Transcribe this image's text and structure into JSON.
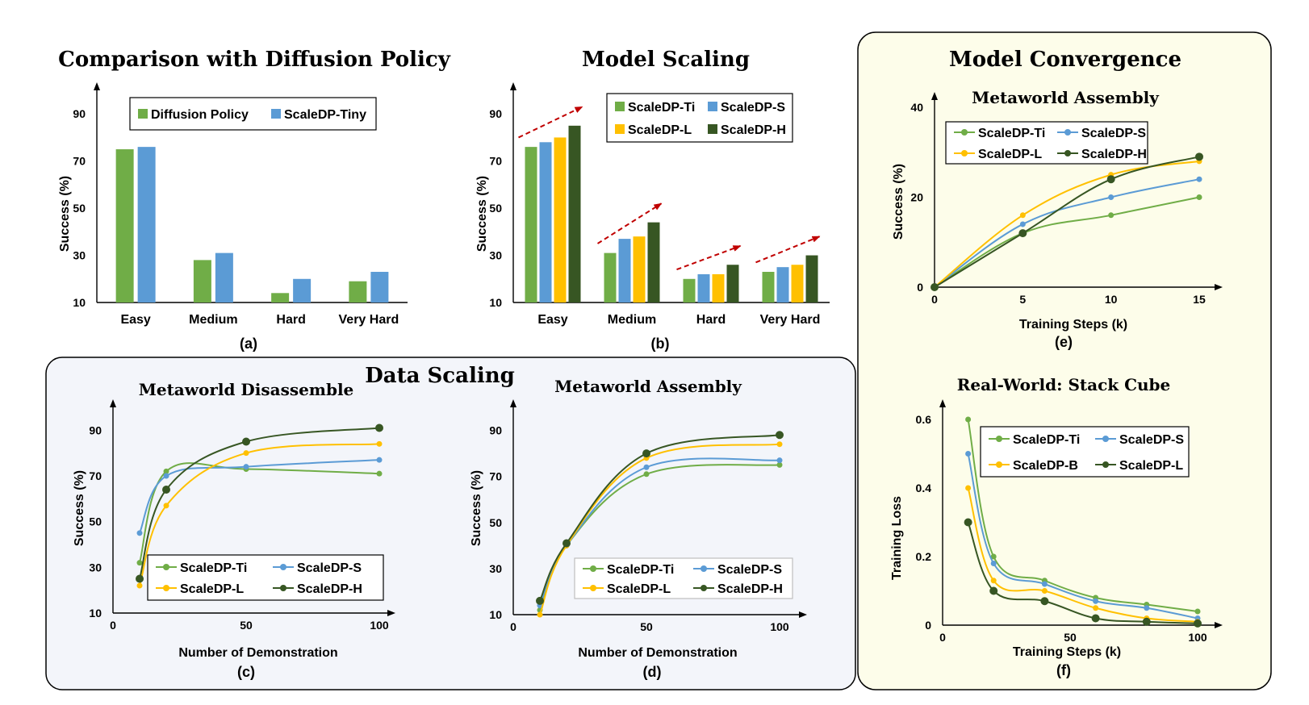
{
  "colors": {
    "ti_green": "#70ad47",
    "s_blue": "#5b9bd5",
    "l_yellow": "#ffc000",
    "h_darkgreen": "#375623",
    "arrow_red": "#c00000",
    "data_scaling_bg": "#f3f5fa",
    "convergence_bg": "#fdfdea"
  },
  "groups": {
    "data_scaling_title": "Data Scaling",
    "model_convergence_title": "Model Convergence"
  },
  "chart_data": [
    {
      "id": "a",
      "type": "bar",
      "title": "Comparison with Diffusion Policy",
      "caption": "(a)",
      "ylabel": "Success (%)",
      "xlabel": "",
      "ylim": [
        10,
        100
      ],
      "yticks": [
        10,
        30,
        50,
        70,
        90
      ],
      "categories": [
        "Easy",
        "Medium",
        "Hard",
        "Very Hard"
      ],
      "legend": "top, inside",
      "series": [
        {
          "name": "Diffusion Policy",
          "color": "#70ad47",
          "values": [
            75,
            28,
            14,
            19
          ]
        },
        {
          "name": "ScaleDP-Tiny",
          "color": "#5b9bd5",
          "values": [
            76,
            31,
            20,
            23
          ]
        }
      ]
    },
    {
      "id": "b",
      "type": "bar",
      "title": "Model Scaling",
      "caption": "(b)",
      "ylabel": "Success (%)",
      "xlabel": "",
      "ylim": [
        10,
        100
      ],
      "yticks": [
        10,
        30,
        50,
        70,
        90
      ],
      "categories": [
        "Easy",
        "Medium",
        "Hard",
        "Very Hard"
      ],
      "legend": "top-right, inside",
      "series": [
        {
          "name": "ScaleDP-Ti",
          "color": "#70ad47",
          "values": [
            76,
            31,
            20,
            23
          ]
        },
        {
          "name": "ScaleDP-S",
          "color": "#5b9bd5",
          "values": [
            78,
            37,
            22,
            25
          ]
        },
        {
          "name": "ScaleDP-L",
          "color": "#ffc000",
          "values": [
            80,
            38,
            22,
            26
          ]
        },
        {
          "name": "ScaleDP-H",
          "color": "#375623",
          "values": [
            85,
            44,
            26,
            30
          ]
        }
      ]
    },
    {
      "id": "c",
      "type": "line",
      "title": "Metaworld Disassemble",
      "caption": "(c)",
      "ylabel": "Success (%)",
      "xlabel": "Number of Demonstration",
      "xlim": [
        0,
        100
      ],
      "xticks": [
        0,
        50,
        100
      ],
      "ylim": [
        10,
        100
      ],
      "yticks": [
        10,
        30,
        50,
        70,
        90
      ],
      "legend": "bottom-left, inside",
      "x": [
        10,
        20,
        50,
        100
      ],
      "series": [
        {
          "name": "ScaleDP-Ti",
          "color": "#70ad47",
          "values": [
            32,
            72,
            73,
            71
          ]
        },
        {
          "name": "ScaleDP-S",
          "color": "#5b9bd5",
          "values": [
            45,
            70,
            74,
            77
          ]
        },
        {
          "name": "ScaleDP-L",
          "color": "#ffc000",
          "values": [
            22,
            57,
            80,
            84
          ]
        },
        {
          "name": "ScaleDP-H",
          "color": "#375623",
          "values": [
            25,
            64,
            85,
            91
          ]
        }
      ]
    },
    {
      "id": "d",
      "type": "line",
      "title": "Metaworld Assembly",
      "caption": "(d)",
      "ylabel": "Success (%)",
      "xlabel": "Number of Demonstration",
      "xlim": [
        0,
        100
      ],
      "xticks": [
        0,
        50,
        100
      ],
      "ylim": [
        10,
        100
      ],
      "yticks": [
        10,
        30,
        50,
        70,
        90
      ],
      "legend": "bottom-right, inside",
      "x": [
        10,
        20,
        50,
        100
      ],
      "series": [
        {
          "name": "ScaleDP-Ti",
          "color": "#70ad47",
          "values": [
            12,
            40,
            71,
            75
          ]
        },
        {
          "name": "ScaleDP-S",
          "color": "#5b9bd5",
          "values": [
            14,
            40,
            74,
            77
          ]
        },
        {
          "name": "ScaleDP-L",
          "color": "#ffc000",
          "values": [
            10,
            40,
            78,
            84
          ]
        },
        {
          "name": "ScaleDP-H",
          "color": "#375623",
          "values": [
            16,
            41,
            80,
            88
          ]
        }
      ]
    },
    {
      "id": "e",
      "type": "line",
      "title": "Metaworld Assembly",
      "caption": "(e)",
      "ylabel": "Success (%)",
      "xlabel": "Training Steps (k)",
      "xlim": [
        0,
        15
      ],
      "xticks": [
        0,
        5,
        10,
        15
      ],
      "ylim": [
        0,
        40
      ],
      "yticks": [
        0,
        20,
        40
      ],
      "legend": "top-left, inside",
      "x": [
        0,
        5,
        10,
        15
      ],
      "series": [
        {
          "name": "ScaleDP-Ti",
          "color": "#70ad47",
          "values": [
            0,
            12,
            16,
            20
          ]
        },
        {
          "name": "ScaleDP-S",
          "color": "#5b9bd5",
          "values": [
            0,
            14,
            20,
            24
          ]
        },
        {
          "name": "ScaleDP-L",
          "color": "#ffc000",
          "values": [
            0,
            16,
            25,
            28
          ]
        },
        {
          "name": "ScaleDP-H",
          "color": "#375623",
          "values": [
            0,
            12,
            24,
            29
          ]
        }
      ]
    },
    {
      "id": "f",
      "type": "line",
      "title": "Real-World: Stack Cube",
      "caption": "(f)",
      "ylabel": "Training Loss",
      "xlabel": "Training Steps (k)",
      "xlim": [
        0,
        100
      ],
      "xticks": [
        0,
        50,
        100
      ],
      "ylim": [
        0,
        0.6
      ],
      "yticks": [
        0,
        0.2,
        0.4,
        0.6
      ],
      "legend": "top-right, inside",
      "x": [
        10,
        20,
        40,
        60,
        80,
        100
      ],
      "series": [
        {
          "name": "ScaleDP-Ti",
          "color": "#70ad47",
          "values": [
            0.6,
            0.2,
            0.13,
            0.08,
            0.06,
            0.04
          ]
        },
        {
          "name": "ScaleDP-S",
          "color": "#5b9bd5",
          "values": [
            0.5,
            0.18,
            0.12,
            0.07,
            0.05,
            0.02
          ]
        },
        {
          "name": "ScaleDP-B",
          "color": "#ffc000",
          "values": [
            0.4,
            0.13,
            0.1,
            0.05,
            0.02,
            0.01
          ]
        },
        {
          "name": "ScaleDP-L",
          "color": "#375623",
          "values": [
            0.3,
            0.1,
            0.07,
            0.02,
            0.01,
            0.005
          ]
        }
      ]
    }
  ]
}
